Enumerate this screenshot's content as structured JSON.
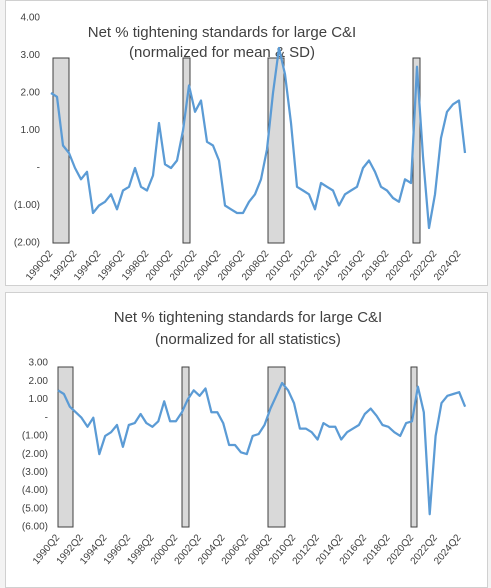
{
  "chart_data": [
    {
      "type": "line",
      "title": "Net % tightening standards for large C&I",
      "subtitle": "(normalized for mean & SD)",
      "categories": [
        "1990Q2",
        null,
        null,
        null,
        "1992Q2",
        null,
        null,
        null,
        "1994Q2",
        null,
        null,
        null,
        "1996Q2",
        null,
        null,
        null,
        "1998Q2",
        null,
        null,
        null,
        "2000Q2",
        null,
        null,
        null,
        "2002Q2",
        null,
        null,
        null,
        "2004Q2",
        null,
        null,
        null,
        "2006Q2",
        null,
        null,
        null,
        "2008Q2",
        null,
        null,
        null,
        "2010Q2",
        null,
        null,
        null,
        "2012Q2",
        null,
        null,
        null,
        "2014Q2",
        null,
        null,
        null,
        "2016Q2",
        null,
        null,
        null,
        "2018Q2",
        null,
        null,
        null,
        "2020Q2",
        null,
        null,
        null,
        "2022Q2",
        null,
        null,
        null,
        "2024Q2",
        null
      ],
      "series": [
        {
          "name": "Net % tightening",
          "color": "#5b9bd5",
          "values": [
            2.0,
            1.9,
            0.6,
            0.4,
            0.0,
            -0.3,
            -0.1,
            -1.2,
            -1.0,
            -0.9,
            -0.7,
            -1.1,
            -0.6,
            -0.5,
            0.0,
            -0.5,
            -0.6,
            -0.2,
            1.2,
            0.1,
            0.0,
            0.2,
            1.0,
            2.2,
            1.5,
            1.8,
            0.7,
            0.6,
            0.2,
            -1.0,
            -1.1,
            -1.2,
            -1.2,
            -0.9,
            -0.7,
            -0.3,
            0.5,
            2.0,
            3.2,
            2.5,
            1.2,
            -0.5,
            -0.6,
            -0.7,
            -1.1,
            -0.4,
            -0.5,
            -0.6,
            -1.0,
            -0.7,
            -0.6,
            -0.5,
            0.0,
            0.2,
            -0.1,
            -0.5,
            -0.6,
            -0.8,
            -0.9,
            -0.3,
            -0.4,
            2.7,
            0.3,
            -1.6,
            -0.7,
            0.8,
            1.5,
            1.7,
            1.8,
            0.4
          ]
        }
      ],
      "ylim": [
        -2,
        4
      ],
      "yticks": [
        {
          "value": -2,
          "label": "(2.00)"
        },
        {
          "value": -1,
          "label": "(1.00)"
        },
        {
          "value": 0,
          "label": "-"
        },
        {
          "value": 1,
          "label": "1.00"
        },
        {
          "value": 2,
          "label": "2.00"
        },
        {
          "value": 3,
          "label": "3.00"
        },
        {
          "value": 4,
          "label": "4.00"
        }
      ]
    },
    {
      "type": "line",
      "title": "Net % tightening standards for large C&I",
      "subtitle": "(normalized for all statistics)",
      "categories": [
        "1990Q2",
        null,
        null,
        null,
        "1992Q2",
        null,
        null,
        null,
        "1994Q2",
        null,
        null,
        null,
        "1996Q2",
        null,
        null,
        null,
        "1998Q2",
        null,
        null,
        null,
        "2000Q2",
        null,
        null,
        null,
        "2002Q2",
        null,
        null,
        null,
        "2004Q2",
        null,
        null,
        null,
        "2006Q2",
        null,
        null,
        null,
        "2008Q2",
        null,
        null,
        null,
        "2010Q2",
        null,
        null,
        null,
        "2012Q2",
        null,
        null,
        null,
        "2014Q2",
        null,
        null,
        null,
        "2016Q2",
        null,
        null,
        null,
        "2018Q2",
        null,
        null,
        null,
        "2020Q2",
        null,
        null,
        null,
        "2022Q2",
        null,
        null,
        null,
        "2024Q2",
        null
      ],
      "series": [
        {
          "name": "Net % tightening",
          "color": "#5b9bd5",
          "values": [
            1.5,
            1.3,
            0.6,
            0.3,
            0.0,
            -0.5,
            0.0,
            -2.0,
            -1.0,
            -0.8,
            -0.4,
            -1.6,
            -0.4,
            -0.3,
            0.2,
            -0.3,
            -0.5,
            -0.2,
            0.9,
            -0.2,
            -0.2,
            0.3,
            1.0,
            1.5,
            1.2,
            1.6,
            0.3,
            0.3,
            -0.3,
            -1.5,
            -1.5,
            -1.9,
            -2.0,
            -1.0,
            -0.9,
            -0.4,
            0.5,
            1.2,
            1.9,
            1.5,
            0.8,
            -0.6,
            -0.6,
            -0.8,
            -1.2,
            -0.3,
            -0.5,
            -0.5,
            -1.2,
            -0.8,
            -0.6,
            -0.4,
            0.2,
            0.5,
            0.1,
            -0.4,
            -0.5,
            -0.8,
            -1.0,
            -0.3,
            -0.2,
            1.7,
            0.3,
            -5.3,
            -1.0,
            0.8,
            1.2,
            1.3,
            1.4,
            0.6
          ]
        }
      ],
      "ylim": [
        -6,
        3
      ],
      "yticks": [
        {
          "value": -6,
          "label": "(6.00)"
        },
        {
          "value": -5,
          "label": "(5.00)"
        },
        {
          "value": -4,
          "label": "(4.00)"
        },
        {
          "value": -3,
          "label": "(3.00)"
        },
        {
          "value": -2,
          "label": "(2.00)"
        },
        {
          "value": -1,
          "label": "(1.00)"
        },
        {
          "value": 0,
          "label": "-"
        },
        {
          "value": 1,
          "label": "1.00"
        },
        {
          "value": 2,
          "label": "2.00"
        },
        {
          "value": 3,
          "label": "3.00"
        }
      ]
    }
  ]
}
